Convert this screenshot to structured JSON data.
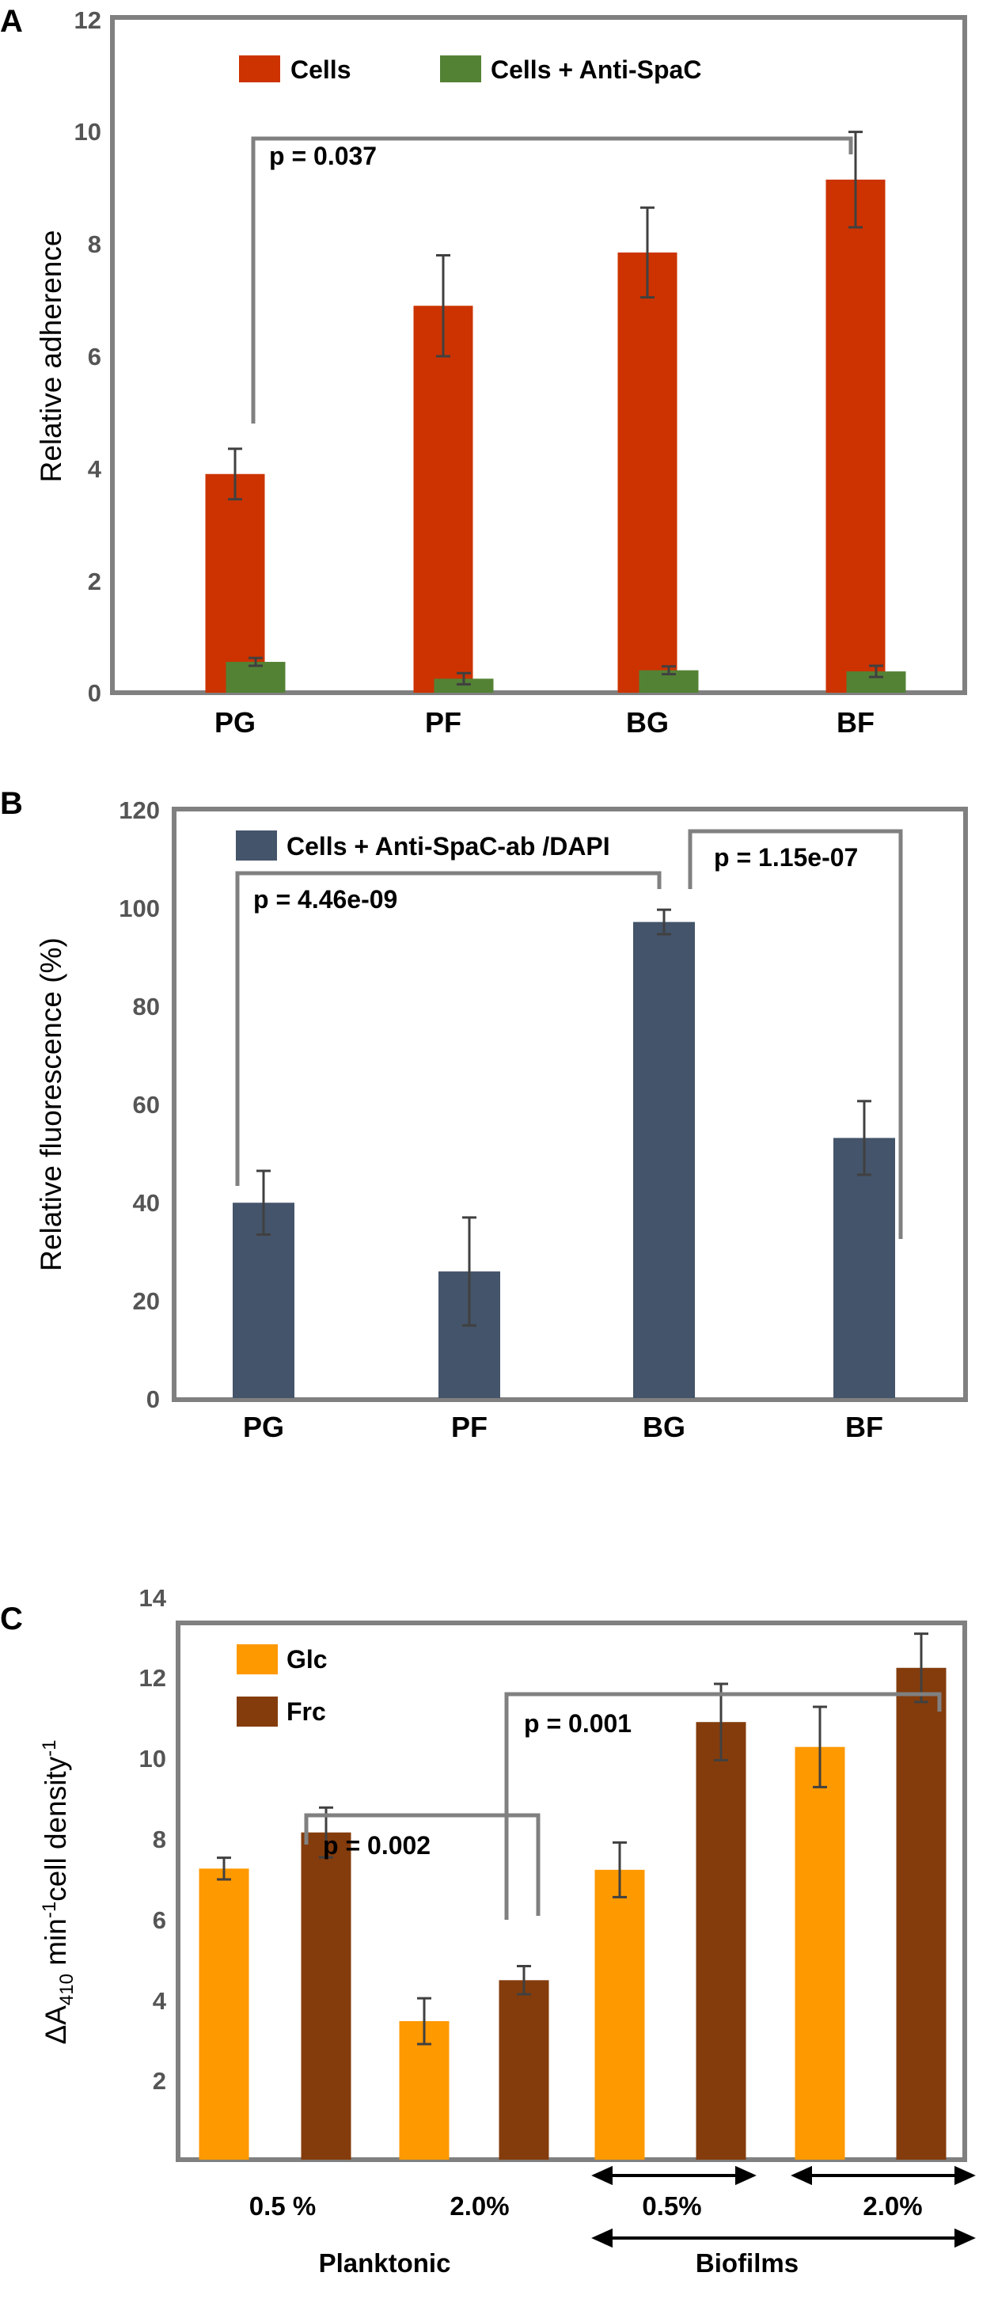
{
  "chart_data": [
    {
      "panel_label": "A",
      "type": "bar",
      "categories": [
        "PG",
        "PF",
        "BG",
        "BF"
      ],
      "series": [
        {
          "name": "Cells",
          "color": "#cc3300",
          "values": [
            3.9,
            6.9,
            7.85,
            9.15
          ],
          "errors": [
            0.45,
            0.9,
            0.8,
            0.85
          ]
        },
        {
          "name": "Cells + Anti-SpaC",
          "color": "#548235",
          "values": [
            0.55,
            0.25,
            0.4,
            0.38
          ],
          "errors": [
            0.07,
            0.1,
            0.07,
            0.1
          ]
        }
      ],
      "ylabel": "Relative adherence",
      "ylim": [
        0,
        12
      ],
      "yticks": [
        "0",
        "2",
        "4",
        "6",
        "8",
        "10",
        "12"
      ],
      "annotations": [
        {
          "text": "p = 0.037",
          "from": "PG",
          "to": "BF"
        }
      ]
    },
    {
      "panel_label": "B",
      "type": "bar",
      "categories": [
        "PG",
        "PF",
        "BG",
        "BF"
      ],
      "series": [
        {
          "name": "Cells + Anti-SpaC-ab /DAPI",
          "color": "#44546a",
          "values": [
            39.8,
            25.8,
            97,
            53
          ],
          "errors": [
            6.5,
            11,
            2.5,
            7.5
          ]
        }
      ],
      "ylabel": "Relative fluorescence (%)",
      "ylim": [
        0,
        120
      ],
      "yticks": [
        "0",
        "20",
        "40",
        "60",
        "80",
        "100",
        "120"
      ],
      "annotations": [
        {
          "text": "p = 4.46e-09",
          "from": "PG",
          "to": "BG"
        },
        {
          "text": "p = 1.15e-07",
          "from": "BG",
          "to": "BF"
        }
      ]
    },
    {
      "panel_label": "C",
      "type": "bar",
      "categories": [
        "Planktonic 0.5 %",
        "Planktonic 2.0%",
        "Biofilms 0.5%",
        "Biofilms 2.0%"
      ],
      "series": [
        {
          "name": "Glc",
          "color": "#ff9900",
          "values": [
            7.25,
            3.45,
            7.22,
            10.28
          ],
          "errors": [
            0.27,
            0.57,
            0.68,
            1.0
          ]
        },
        {
          "name": "Frc",
          "color": "#843c0c",
          "values": [
            8.15,
            4.47,
            10.9,
            12.25
          ],
          "errors": [
            0.62,
            0.35,
            0.95,
            0.85
          ]
        }
      ],
      "ylabel_main": "ΔA",
      "ylabel_sub": "410",
      "ylabel_mid": " min",
      "ylabel_sup1": "-1",
      "ylabel_end": "cell density",
      "ylabel_sup2": "-1",
      "ylim": [
        0,
        14
      ],
      "yticks": [
        "2",
        "4",
        "6",
        "8",
        "10",
        "12",
        "14"
      ],
      "group_sublabels": [
        "0.5 %",
        "2.0%",
        "0.5%",
        "2.0%"
      ],
      "group_labels": [
        "Planktonic",
        "Biofilms"
      ],
      "annotations": [
        {
          "text": "p = 0.002",
          "from": "Planktonic 0.5 % Frc",
          "to": "Planktonic 2.0% Frc"
        },
        {
          "text": "p = 0.001",
          "from": "Planktonic 2.0% Frc",
          "to": "Biofilms 2.0% Frc"
        }
      ]
    }
  ]
}
